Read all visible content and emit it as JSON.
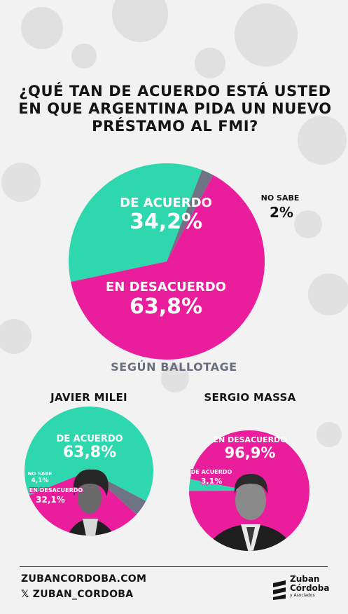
{
  "title_lines": [
    "¿QUÉ TAN DE ACUERDO ESTÁ USTED",
    "EN QUE ARGENTINA PIDA UN NUEVO",
    "PRÉSTAMO AL FMI?"
  ],
  "subtitle": "SEGÚN BALLOTAGE",
  "colors": {
    "agree": "#2ed7ae",
    "disagree": "#ea1e9d",
    "unsure": "#6f7484",
    "text": "#141414"
  },
  "chart_data": [
    {
      "type": "pie",
      "title": "",
      "slices": [
        {
          "label": "DE ACUERDO",
          "value": 34.2,
          "display": "34,2%",
          "color": "#2ed7ae"
        },
        {
          "label": "NO SABE",
          "value": 2,
          "display": "2%",
          "color": "#6f7484"
        },
        {
          "label": "EN DESACUERDO",
          "value": 63.8,
          "display": "63,8%",
          "color": "#ea1e9d"
        }
      ]
    },
    {
      "type": "pie",
      "title": "JAVIER MILEI",
      "slices": [
        {
          "label": "DE ACUERDO",
          "value": 63.8,
          "display": "63,8%",
          "color": "#2ed7ae"
        },
        {
          "label": "NO SABE",
          "value": 4.1,
          "display": "4,1%",
          "color": "#6f7484"
        },
        {
          "label": "EN DESACUERDO",
          "value": 32.1,
          "display": "32,1%",
          "color": "#ea1e9d"
        }
      ]
    },
    {
      "type": "pie",
      "title": "SERGIO MASSA",
      "slices": [
        {
          "label": "EN DESACUERDO",
          "value": 96.9,
          "display": "96,9%",
          "color": "#ea1e9d"
        },
        {
          "label": "DE ACUERDO",
          "value": 3.1,
          "display": "3,1%",
          "color": "#2ed7ae"
        }
      ]
    }
  ],
  "footer": {
    "website": "ZUBANCORDOBA.COM",
    "social": "𝕏 ZUBAN_CORDOBA"
  },
  "brand": {
    "line1": "Zuban",
    "line2": "Córdoba",
    "line3": "y Asociados"
  }
}
